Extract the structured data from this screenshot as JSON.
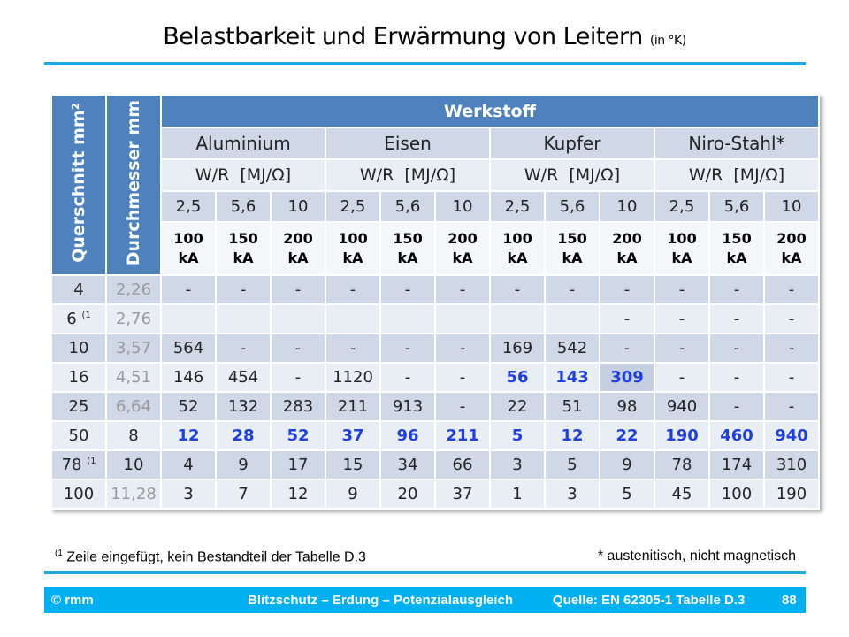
{
  "title": {
    "main": "Belastbarkeit und Erwärmung von Leitern",
    "sub": "(in °K)"
  },
  "table": {
    "col_querschnitt": "Querschnitt mm²",
    "col_durchmesser": "Durchmesser mm",
    "werkstoff": "Werkstoff",
    "materials": [
      "Aluminium",
      "Eisen",
      "Kupfer",
      "Niro-Stahl*"
    ],
    "unit": "W/R  [MJ/Ω]",
    "wr_values": [
      "2,5",
      "5,6",
      "10"
    ],
    "currents": [
      "100 kA",
      "150 kA",
      "200 kA"
    ],
    "rows": [
      {
        "q": "4",
        "note": "",
        "d": "2,26",
        "v": [
          "-",
          "-",
          "-",
          "-",
          "-",
          "-",
          "-",
          "-",
          "-",
          "-",
          "-",
          "-"
        ]
      },
      {
        "q": "6",
        "note": "(1",
        "d": "2,76",
        "v": [
          "",
          "",
          "",
          "",
          "",
          "",
          "",
          "",
          "-",
          "-",
          "-",
          "-"
        ]
      },
      {
        "q": "10",
        "note": "",
        "d": "3,57",
        "v": [
          "564",
          "-",
          "-",
          "-",
          "-",
          "-",
          "169",
          "542",
          "-",
          "-",
          "-",
          "-"
        ]
      },
      {
        "q": "16",
        "note": "",
        "d": "4,51",
        "v": [
          "146",
          "454",
          "-",
          "1120",
          "-",
          "-",
          "56",
          "143",
          "309",
          "-",
          "-",
          "-"
        ]
      },
      {
        "q": "25",
        "note": "",
        "d": "6,64",
        "v": [
          "52",
          "132",
          "283",
          "211",
          "913",
          "-",
          "22",
          "51",
          "98",
          "940",
          "-",
          "-"
        ]
      },
      {
        "q": "50",
        "note": "",
        "d": "8",
        "v": [
          "12",
          "28",
          "52",
          "37",
          "96",
          "211",
          "5",
          "12",
          "22",
          "190",
          "460",
          "940"
        ]
      },
      {
        "q": "78",
        "note": "(1",
        "d": "10",
        "v": [
          "4",
          "9",
          "17",
          "15",
          "34",
          "66",
          "3",
          "5",
          "9",
          "78",
          "174",
          "310"
        ]
      },
      {
        "q": "100",
        "note": "",
        "d": "11,28",
        "v": [
          "3",
          "7",
          "12",
          "9",
          "20",
          "37",
          "1",
          "3",
          "5",
          "45",
          "100",
          "190"
        ]
      }
    ],
    "highlight_color": "#1f3fe0"
  },
  "footnotes": {
    "left_mark": "(1",
    "left": "Zeile eingefügt, kein Bestandteil der Tabelle D.3",
    "right": "* austenitisch, nicht magnetisch"
  },
  "footer": {
    "copyright": "© rmm",
    "topic": "Blitzschutz – Erdung – Potenzialausgleich",
    "source": "Quelle: EN 62305-1 Tabelle D.3",
    "page": "88"
  }
}
